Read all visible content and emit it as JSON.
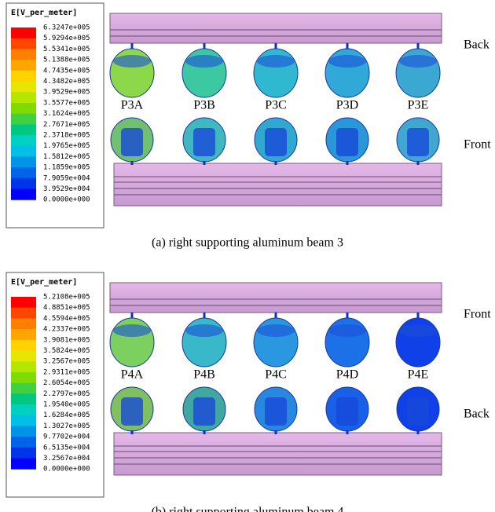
{
  "panels": [
    {
      "legend_title": "E[V_per_meter]",
      "legend_values": [
        "6.3247e+005",
        "5.9294e+005",
        "5.5341e+005",
        "5.1388e+005",
        "4.7435e+005",
        "4.3482e+005",
        "3.9529e+005",
        "3.5577e+005",
        "3.1624e+005",
        "2.7671e+005",
        "2.3718e+005",
        "1.9765e+005",
        "1.5812e+005",
        "1.1859e+005",
        "7.9059e+004",
        "3.9529e+004",
        "0.0000e+000"
      ],
      "sphere_labels": [
        "P3A",
        "P3B",
        "P3C",
        "P3D",
        "P3E"
      ],
      "top_side": "Back",
      "bottom_side": "Front",
      "caption": "(a) right supporting aluminum beam 3"
    },
    {
      "legend_title": "E[V_per_meter]",
      "legend_values": [
        "5.2108e+005",
        "4.8851e+005",
        "4.5594e+005",
        "4.2337e+005",
        "3.9081e+005",
        "3.5824e+005",
        "3.2567e+005",
        "2.9311e+005",
        "2.6054e+005",
        "2.2797e+005",
        "1.9540e+005",
        "1.6284e+005",
        "1.3027e+005",
        "9.7702e+004",
        "6.5135e+004",
        "3.2567e+004",
        "0.0000e+000"
      ],
      "sphere_labels": [
        "P4A",
        "P4B",
        "P4C",
        "P4D",
        "P4E"
      ],
      "top_side": "Front",
      "bottom_side": "Back",
      "caption": "(b) right supporting aluminum beam 4"
    }
  ]
}
